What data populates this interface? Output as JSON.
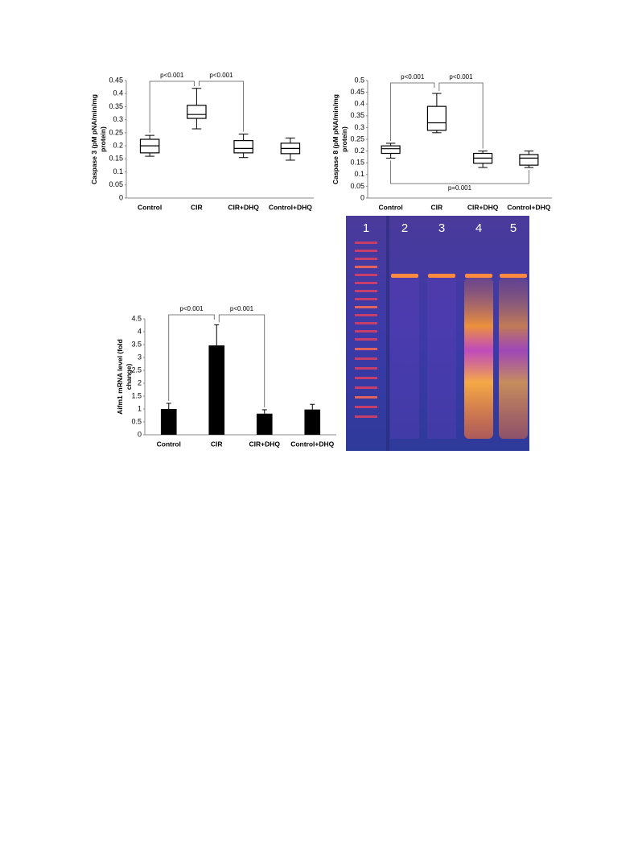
{
  "chart_data": [
    {
      "type": "box",
      "ylabel": "Caspase 3 (pM pNA/min/mg protein)",
      "categories": [
        "Control",
        "CIR",
        "CIR+DHQ",
        "Control+DHQ"
      ],
      "min": [
        0.16,
        0.265,
        0.155,
        0.145
      ],
      "q1": [
        0.173,
        0.305,
        0.173,
        0.17
      ],
      "median": [
        0.2,
        0.32,
        0.19,
        0.19
      ],
      "q3": [
        0.225,
        0.355,
        0.22,
        0.21
      ],
      "max": [
        0.24,
        0.42,
        0.245,
        0.23
      ],
      "ylim": [
        0,
        0.45
      ],
      "yticks": [
        0,
        0.05,
        0.1,
        0.15,
        0.2,
        0.25,
        0.3,
        0.35,
        0.4,
        0.45
      ],
      "annotations": [
        "p<0.001",
        "p<0.001"
      ]
    },
    {
      "type": "box",
      "ylabel": "Caspase 8 (pM pNA/min/mg protein)",
      "categories": [
        "Control",
        "CIR",
        "CIR+DHQ",
        "Control+DHQ"
      ],
      "min": [
        0.17,
        0.278,
        0.13,
        0.13
      ],
      "q1": [
        0.19,
        0.288,
        0.148,
        0.14
      ],
      "median": [
        0.21,
        0.32,
        0.17,
        0.17
      ],
      "q3": [
        0.222,
        0.39,
        0.19,
        0.185
      ],
      "max": [
        0.233,
        0.445,
        0.2,
        0.2
      ],
      "ylim": [
        0,
        0.5
      ],
      "yticks": [
        0,
        0.05,
        0.1,
        0.15,
        0.2,
        0.25,
        0.3,
        0.35,
        0.4,
        0.45,
        0.5
      ],
      "annotations": [
        "p<0.001",
        "p<0.001",
        "p=0.001"
      ]
    },
    {
      "type": "bar",
      "ylabel": "Aifm1 mRNA level (fold change)",
      "categories": [
        "Control",
        "CIR",
        "CIR+DHQ",
        "Control+DHQ"
      ],
      "values": [
        1.0,
        3.47,
        0.82,
        0.98
      ],
      "errors": [
        0.22,
        0.8,
        0.15,
        0.2
      ],
      "color": "#000000",
      "ylim": [
        0,
        4.5
      ],
      "yticks": [
        0,
        0.5,
        1,
        1.5,
        2,
        2.5,
        3,
        3.5,
        4,
        4.5
      ],
      "annotations": [
        "p<0.001",
        "p<0.001"
      ]
    },
    {
      "type": "gel",
      "lanes": [
        "1",
        "2",
        "3",
        "4",
        "5"
      ]
    }
  ]
}
